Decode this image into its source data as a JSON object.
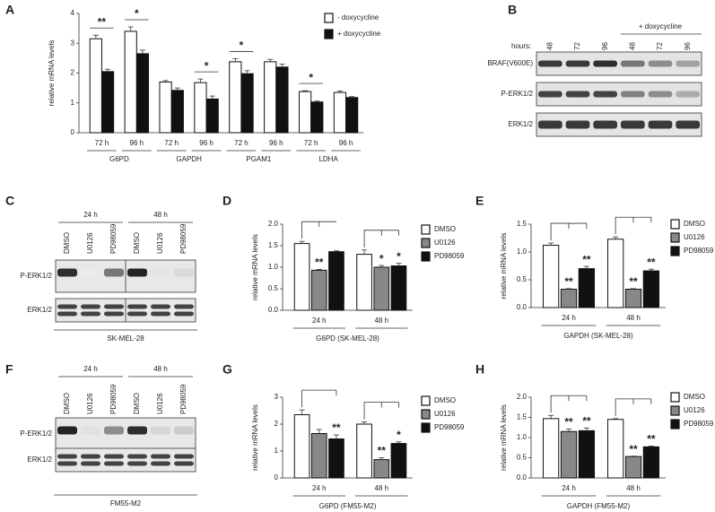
{
  "chart_data": [
    {
      "type": "bar",
      "panel": "A",
      "ylabel": "relative mRNA levels",
      "ylim": [
        0,
        4
      ],
      "yticks": [
        0,
        1,
        2,
        3,
        4
      ],
      "categories": [
        "72 h",
        "96 h",
        "72 h",
        "96 h",
        "72 h",
        "96 h",
        "72 h",
        "96 h"
      ],
      "groups": [
        "G6PD",
        "GAPDH",
        "PGAM1",
        "LDHA"
      ],
      "annotations": [
        "**",
        "*",
        null,
        "*",
        "*",
        null,
        "*",
        null
      ],
      "series": [
        {
          "name": "- doxycycline",
          "color": "#ffffff",
          "values": [
            3.15,
            3.4,
            1.7,
            1.68,
            2.38,
            2.38,
            1.38,
            1.35
          ],
          "errors": [
            0.12,
            0.15,
            0.05,
            0.12,
            0.1,
            0.08,
            0.03,
            0.05
          ]
        },
        {
          "name": "+ doxycycline",
          "color": "#111111",
          "values": [
            2.05,
            2.65,
            1.42,
            1.13,
            1.98,
            2.2,
            1.03,
            1.18
          ],
          "errors": [
            0.08,
            0.12,
            0.08,
            0.1,
            0.1,
            0.1,
            0.03,
            0.03
          ]
        }
      ]
    },
    {
      "type": "bar",
      "panel": "D",
      "ylabel": "relative mRNA levels",
      "xlabel": "G6PD (SK-MEL-28)",
      "ylim": [
        0,
        2
      ],
      "yticks": [
        {
          "value": 0,
          "label": "0.0"
        },
        {
          "value": 0.5,
          "label": "0.5"
        },
        {
          "value": 1,
          "label": "1.0"
        },
        {
          "value": 1.5,
          "label": "1.5"
        },
        {
          "value": 2,
          "label": "2.0"
        }
      ],
      "categories": [
        "24 h",
        "48 h"
      ],
      "series": [
        {
          "name": "DMSO",
          "color": "#ffffff",
          "values": [
            1.55,
            1.3
          ],
          "errors": [
            0.05,
            0.1
          ],
          "annotations": [
            null,
            null
          ]
        },
        {
          "name": "U0126",
          "color": "#888888",
          "values": [
            0.93,
            1.0
          ],
          "errors": [
            0.02,
            0.04
          ],
          "annotations": [
            "**",
            "*"
          ]
        },
        {
          "name": "PD98059",
          "color": "#111111",
          "values": [
            1.36,
            1.03
          ],
          "errors": [
            0.02,
            0.06
          ],
          "annotations": [
            null,
            "*"
          ]
        }
      ]
    },
    {
      "type": "bar",
      "panel": "E",
      "ylabel": "relative mRNA levels",
      "xlabel": "GAPDH (SK-MEL-28)",
      "ylim": [
        0,
        1.5
      ],
      "yticks": [
        {
          "value": 0,
          "label": "0.0"
        },
        {
          "value": 0.5,
          "label": "0.5"
        },
        {
          "value": 1,
          "label": "1.0"
        },
        {
          "value": 1.5,
          "label": "1.5"
        }
      ],
      "categories": [
        "24 h",
        "48 h"
      ],
      "series": [
        {
          "name": "DMSO",
          "color": "#ffffff",
          "values": [
            1.12,
            1.23
          ],
          "errors": [
            0.04,
            0.04
          ],
          "annotations": [
            null,
            null
          ]
        },
        {
          "name": "U0126",
          "color": "#888888",
          "values": [
            0.33,
            0.33
          ],
          "errors": [
            0.01,
            0.01
          ],
          "annotations": [
            "**",
            "**"
          ]
        },
        {
          "name": "PD98059",
          "color": "#111111",
          "values": [
            0.7,
            0.66
          ],
          "errors": [
            0.04,
            0.03
          ],
          "annotations": [
            "**",
            "**"
          ]
        }
      ]
    },
    {
      "type": "bar",
      "panel": "G",
      "ylabel": "relative mRNA levels",
      "xlabel": "G6PD (FM55-M2)",
      "ylim": [
        0,
        3
      ],
      "yticks": [
        0,
        1,
        2,
        3
      ],
      "categories": [
        "24 h",
        "48 h"
      ],
      "series": [
        {
          "name": "DMSO",
          "color": "#ffffff",
          "values": [
            2.35,
            2.0
          ],
          "errors": [
            0.18,
            0.08
          ],
          "annotations": [
            null,
            null
          ]
        },
        {
          "name": "U0126",
          "color": "#888888",
          "values": [
            1.65,
            0.68
          ],
          "errors": [
            0.15,
            0.07
          ],
          "annotations": [
            null,
            "**"
          ]
        },
        {
          "name": "PD98059",
          "color": "#111111",
          "values": [
            1.45,
            1.28
          ],
          "errors": [
            0.15,
            0.06
          ],
          "annotations": [
            "**",
            "*"
          ]
        }
      ]
    },
    {
      "type": "bar",
      "panel": "H",
      "ylabel": "relative mRNA levels",
      "xlabel": "GAPDH (FM55-M2)",
      "ylim": [
        0,
        2
      ],
      "yticks": [
        {
          "value": 0,
          "label": "0.0"
        },
        {
          "value": 0.5,
          "label": "0.5"
        },
        {
          "value": 1,
          "label": "1.0"
        },
        {
          "value": 1.5,
          "label": "1.5"
        },
        {
          "value": 2,
          "label": "2.0"
        }
      ],
      "categories": [
        "24 h",
        "48 h"
      ],
      "series": [
        {
          "name": "DMSO",
          "color": "#ffffff",
          "values": [
            1.47,
            1.45
          ],
          "errors": [
            0.08,
            0.02
          ],
          "annotations": [
            null,
            null
          ]
        },
        {
          "name": "U0126",
          "color": "#888888",
          "values": [
            1.15,
            0.53
          ],
          "errors": [
            0.06,
            0.01
          ],
          "annotations": [
            "**",
            "**"
          ]
        },
        {
          "name": "PD98059",
          "color": "#111111",
          "values": [
            1.17,
            0.77
          ],
          "errors": [
            0.07,
            0.02
          ],
          "annotations": [
            "**",
            "**"
          ]
        }
      ]
    }
  ],
  "blots": [
    {
      "panel": "B",
      "hours_label": "hours:",
      "treatment": "+ doxycycline",
      "lanes": [
        "48",
        "72",
        "96",
        "48",
        "72",
        "96"
      ],
      "rows": [
        "BRAF(V600E)",
        "P-ERK1/2",
        "ERK1/2"
      ]
    },
    {
      "panel": "C",
      "times": [
        "24 h",
        "48 h"
      ],
      "lanes": [
        "DMSO",
        "U0126",
        "PD98059",
        "DMSO",
        "U0126",
        "PD98059"
      ],
      "rows": [
        "P-ERK1/2",
        "ERK1/2"
      ],
      "cell_line": "SK-MEL-28"
    },
    {
      "panel": "F",
      "times": [
        "24 h",
        "48 h"
      ],
      "lanes": [
        "DMSO",
        "U0126",
        "PD98059",
        "DMSO",
        "U0126",
        "PD98059"
      ],
      "rows": [
        "P-ERK1/2",
        "ERK1/2"
      ],
      "cell_line": "FM55-M2"
    }
  ]
}
